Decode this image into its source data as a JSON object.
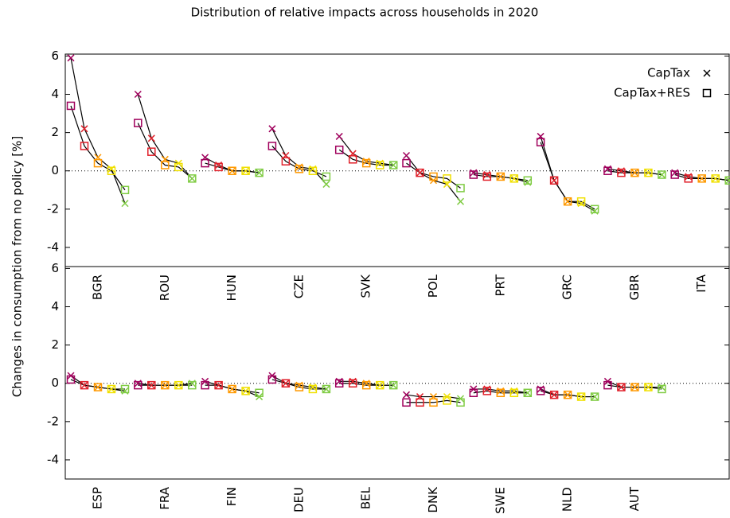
{
  "chart_data": [
    {
      "type": "line",
      "title": "Distribution of relative impacts across households in 2020",
      "y_label": "Changes in consumption from no policy [%]",
      "categories": [
        "BGR",
        "ROU",
        "HUN",
        "CZE",
        "SVK",
        "POL",
        "PRT",
        "GRC",
        "GBR",
        "ITA"
      ],
      "ylim": [
        -5,
        6.1
      ],
      "yticks": [
        -4,
        -2,
        0,
        2,
        4,
        6
      ],
      "zero_line": true,
      "legend": "upper right",
      "point_colors": [
        "#a0005c",
        "#e0202a",
        "#ff9900",
        "#f0e000",
        "#80cc44"
      ],
      "series": [
        {
          "name": "CapTax",
          "marker": "x",
          "values": [
            [
              5.9,
              2.2,
              0.7,
              0.1,
              -1.7
            ],
            [
              4.0,
              1.7,
              0.6,
              0.4,
              -0.4
            ],
            [
              0.7,
              0.3,
              0.0,
              0.0,
              -0.1
            ],
            [
              2.2,
              0.8,
              0.2,
              0.1,
              -0.7
            ],
            [
              1.8,
              0.9,
              0.5,
              0.4,
              0.3
            ],
            [
              0.8,
              -0.1,
              -0.5,
              -0.7,
              -1.6
            ],
            [
              -0.1,
              -0.2,
              -0.3,
              -0.4,
              -0.6
            ],
            [
              1.8,
              -0.5,
              -1.6,
              -1.7,
              -2.1
            ],
            [
              0.1,
              0.0,
              -0.1,
              -0.1,
              -0.2
            ],
            [
              -0.1,
              -0.3,
              -0.4,
              -0.4,
              -0.5
            ]
          ]
        },
        {
          "name": "CapTax+RES",
          "marker": "square",
          "values": [
            [
              3.4,
              1.3,
              0.4,
              0.0,
              -1.0
            ],
            [
              2.5,
              1.0,
              0.3,
              0.2,
              -0.4
            ],
            [
              0.4,
              0.2,
              0.0,
              0.0,
              -0.1
            ],
            [
              1.3,
              0.5,
              0.1,
              0.0,
              -0.3
            ],
            [
              1.1,
              0.6,
              0.4,
              0.3,
              0.3
            ],
            [
              0.4,
              -0.1,
              -0.3,
              -0.4,
              -0.9
            ],
            [
              -0.2,
              -0.3,
              -0.3,
              -0.4,
              -0.5
            ],
            [
              1.5,
              -0.5,
              -1.6,
              -1.6,
              -2.0
            ],
            [
              0.0,
              -0.1,
              -0.1,
              -0.1,
              -0.2
            ],
            [
              -0.2,
              -0.4,
              -0.4,
              -0.4,
              -0.5
            ]
          ]
        }
      ]
    },
    {
      "type": "line",
      "categories": [
        "ESP",
        "FRA",
        "FIN",
        "DEU",
        "BEL",
        "DNK",
        "SWE",
        "NLD",
        "AUT"
      ],
      "ylim": [
        -5,
        6.1
      ],
      "yticks": [
        -4,
        -2,
        0,
        2,
        4,
        6
      ],
      "zero_line": true,
      "point_colors": [
        "#a0005c",
        "#e0202a",
        "#ff9900",
        "#f0e000",
        "#80cc44"
      ],
      "series": [
        {
          "marker": "x",
          "values": [
            [
              0.4,
              -0.1,
              -0.2,
              -0.3,
              -0.4
            ],
            [
              0.0,
              -0.1,
              -0.1,
              -0.1,
              0.0
            ],
            [
              0.1,
              -0.1,
              -0.3,
              -0.4,
              -0.7
            ],
            [
              0.4,
              0.0,
              -0.1,
              -0.2,
              -0.3
            ],
            [
              0.1,
              0.1,
              0.0,
              -0.1,
              -0.1
            ],
            [
              -0.6,
              -0.7,
              -0.7,
              -0.7,
              -0.8
            ],
            [
              -0.3,
              -0.3,
              -0.4,
              -0.4,
              -0.5
            ],
            [
              -0.3,
              -0.6,
              -0.6,
              -0.7,
              -0.7
            ],
            [
              0.1,
              -0.2,
              -0.2,
              -0.2,
              -0.2
            ]
          ]
        },
        {
          "marker": "square",
          "values": [
            [
              0.2,
              -0.1,
              -0.2,
              -0.3,
              -0.3
            ],
            [
              -0.1,
              -0.1,
              -0.1,
              -0.1,
              -0.1
            ],
            [
              -0.1,
              -0.1,
              -0.3,
              -0.4,
              -0.5
            ],
            [
              0.2,
              0.0,
              -0.2,
              -0.3,
              -0.3
            ],
            [
              0.0,
              0.0,
              -0.1,
              -0.1,
              -0.1
            ],
            [
              -1.0,
              -1.0,
              -1.0,
              -0.9,
              -1.0
            ],
            [
              -0.5,
              -0.4,
              -0.5,
              -0.5,
              -0.5
            ],
            [
              -0.4,
              -0.6,
              -0.6,
              -0.7,
              -0.7
            ],
            [
              -0.1,
              -0.2,
              -0.2,
              -0.2,
              -0.3
            ]
          ]
        }
      ]
    }
  ]
}
